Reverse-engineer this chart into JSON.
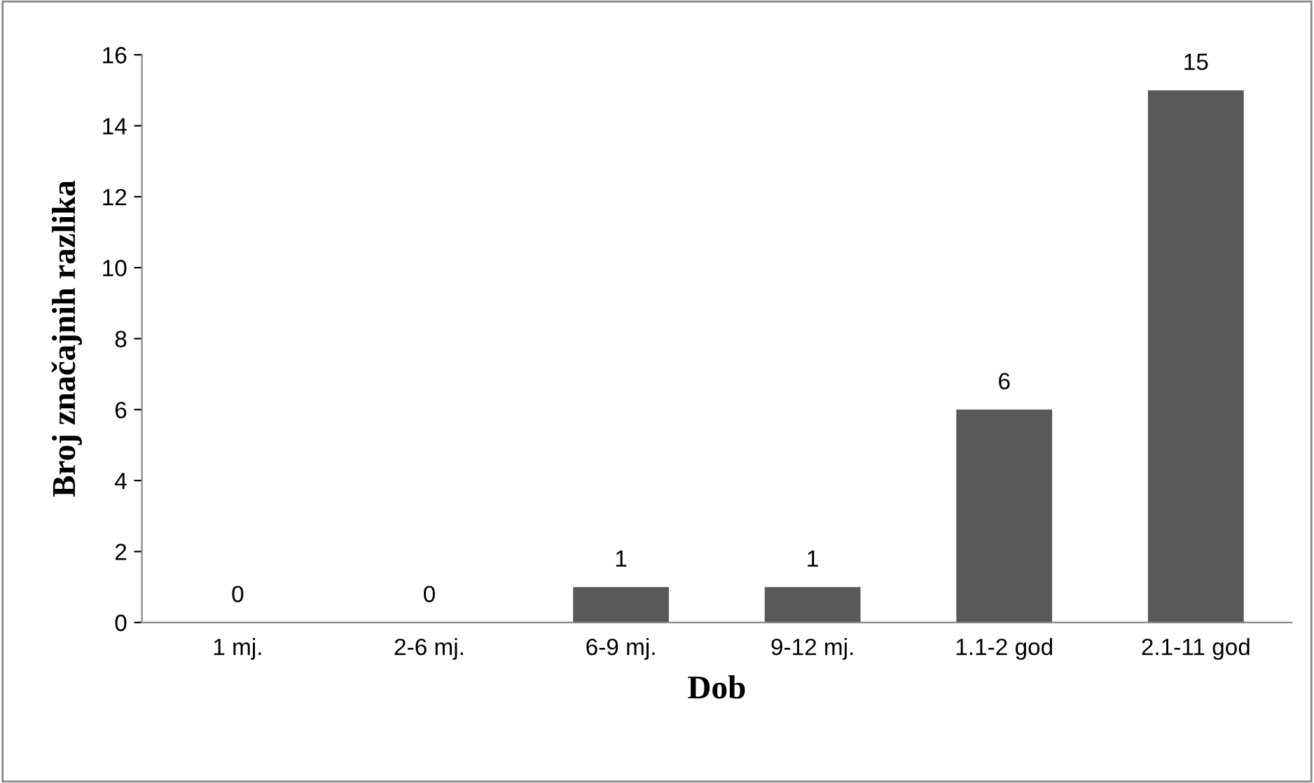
{
  "chart_data": {
    "type": "bar",
    "xlabel": "Dob",
    "ylabel": "Broj značajnih razlika",
    "categories": [
      "1 mj.",
      "2-6 mj.",
      "6-9 mj.",
      "9-12 mj.",
      "1.1-2 god",
      "2.1-11 god"
    ],
    "values": [
      0,
      0,
      1,
      1,
      6,
      15
    ],
    "color": "#595959",
    "ylim": [
      0,
      16
    ],
    "yticks": [
      0,
      2,
      4,
      6,
      8,
      10,
      12,
      14,
      16
    ],
    "grid": false,
    "data_labels": true
  }
}
